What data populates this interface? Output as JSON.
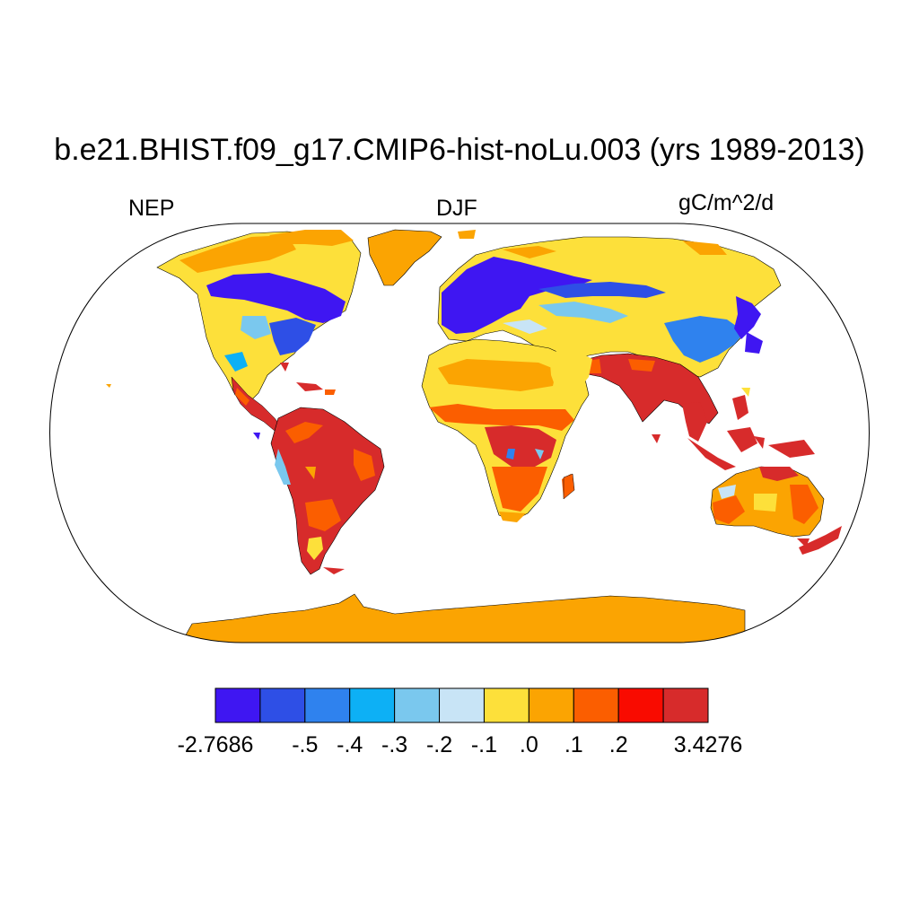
{
  "title": "b.e21.BHIST.f09_g17.CMIP6-hist-noLu.003 (yrs 1989-2013)",
  "left_label": "NEP",
  "center_label": "DJF",
  "right_label": "gC/m^2/d",
  "colorbar": {
    "colors": [
      "#3f16f2",
      "#2e4fe6",
      "#2f82ee",
      "#0db0f5",
      "#7ac8ee",
      "#c8e4f6",
      "#fde03a",
      "#fba402",
      "#fb5e00",
      "#f90b00",
      "#d72b2b"
    ],
    "labels": [
      "-2.7686",
      "-.5",
      "-.4",
      "-.3",
      "-.2",
      "-.1",
      ".0",
      ".1",
      ".2",
      "3.4276"
    ],
    "label_boundaries": [
      0,
      2,
      3,
      4,
      5,
      6,
      7,
      8,
      9,
      11
    ]
  }
}
